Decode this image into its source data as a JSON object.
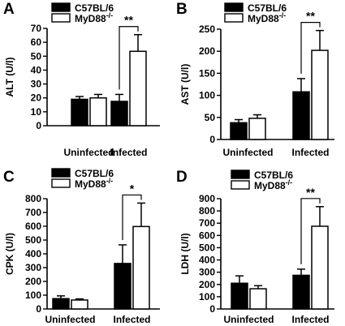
{
  "figure": {
    "colors": {
      "black_bar": "#000000",
      "white_bar": "#ffffff",
      "axis": "#000000"
    }
  },
  "chart_data": [
    {
      "type": "bar",
      "panel": "A",
      "ylabel": "ALT (U/l)",
      "ylim": [
        0,
        70
      ],
      "yticks": [
        0,
        10,
        20,
        30,
        40,
        50,
        60,
        70
      ],
      "categories": [
        "Uninfected",
        "Infected"
      ],
      "series": [
        {
          "name": "C57BL/6",
          "color": "#000000",
          "values": [
            19,
            17.5
          ],
          "errors": [
            2,
            5
          ]
        },
        {
          "name": "MyD88",
          "sup": "-/-",
          "color": "#ffffff",
          "values": [
            20,
            53.5
          ],
          "errors": [
            2.5,
            12
          ]
        }
      ],
      "significance": {
        "category": "Infected",
        "label": "**"
      },
      "legend": "top-left"
    },
    {
      "type": "bar",
      "panel": "B",
      "ylabel": "AST (U/l)",
      "ylim": [
        0,
        250
      ],
      "yticks": [
        0,
        50,
        100,
        150,
        200,
        250
      ],
      "categories": [
        "Uninfected",
        "Infected"
      ],
      "series": [
        {
          "name": "C57BL/6",
          "color": "#000000",
          "values": [
            38,
            108
          ],
          "errors": [
            7,
            30
          ]
        },
        {
          "name": "MyD88",
          "sup": "-/-",
          "color": "#ffffff",
          "values": [
            48,
            202
          ],
          "errors": [
            8,
            45
          ]
        }
      ],
      "significance": {
        "category": "Infected",
        "label": "**"
      },
      "legend": "top-left"
    },
    {
      "type": "bar",
      "panel": "C",
      "ylabel": "CPK (U/l)",
      "ylim": [
        0,
        800
      ],
      "yticks": [
        0,
        100,
        200,
        300,
        400,
        500,
        600,
        700,
        800
      ],
      "categories": [
        "Uninfected",
        "Infected"
      ],
      "series": [
        {
          "name": "C57BL/6",
          "color": "#000000",
          "values": [
            75,
            330
          ],
          "errors": [
            20,
            135
          ]
        },
        {
          "name": "MyD88",
          "sup": "-/-",
          "color": "#ffffff",
          "values": [
            65,
            598
          ],
          "errors": [
            8,
            170
          ]
        }
      ],
      "significance": {
        "category": "Infected",
        "label": "*"
      },
      "legend": "top-left"
    },
    {
      "type": "bar",
      "panel": "D",
      "ylabel": "LDH (U/l)",
      "ylim": [
        0,
        900
      ],
      "yticks": [
        0,
        100,
        200,
        300,
        400,
        500,
        600,
        700,
        800,
        900
      ],
      "categories": [
        "Uninfected",
        "Infected"
      ],
      "series": [
        {
          "name": "C57BL/6",
          "color": "#000000",
          "values": [
            210,
            275
          ],
          "errors": [
            60,
            50
          ]
        },
        {
          "name": "MyD88",
          "sup": "-/-",
          "color": "#ffffff",
          "values": [
            165,
            675
          ],
          "errors": [
            25,
            160
          ]
        }
      ],
      "significance": {
        "category": "Infected",
        "label": "**"
      },
      "legend": "top-left"
    }
  ]
}
